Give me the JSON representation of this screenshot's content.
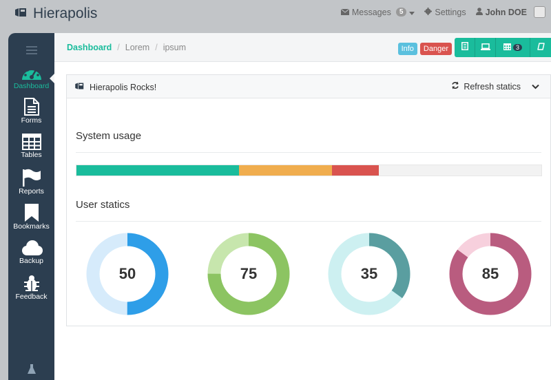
{
  "app": {
    "title": "Hierapolis"
  },
  "topnav": {
    "messages_label": "Messages",
    "messages_count": "5",
    "settings_label": "Settings",
    "user_name": "John DOE"
  },
  "sidebar": {
    "items": [
      {
        "label": "Dashboard",
        "icon": "dashboard-icon"
      },
      {
        "label": "Forms",
        "icon": "file-text-icon"
      },
      {
        "label": "Tables",
        "icon": "table-icon"
      },
      {
        "label": "Reports",
        "icon": "flag-icon"
      },
      {
        "label": "Bookmarks",
        "icon": "bookmark-icon"
      },
      {
        "label": "Backup",
        "icon": "cloud-icon"
      },
      {
        "label": "Feedback",
        "icon": "bug-icon"
      }
    ]
  },
  "breadcrumb": {
    "active": "Dashboard",
    "items": [
      "Lorem",
      "ipsum"
    ],
    "sep": "/"
  },
  "labels": {
    "info": "Info",
    "danger": "Danger"
  },
  "toolbar": {
    "calendar_count": "3"
  },
  "panel": {
    "title": "Hierapolis Rocks!",
    "refresh_label": "Refresh statics"
  },
  "system_usage": {
    "title": "System usage",
    "segments": [
      {
        "value": 35,
        "color": "#1abc9c"
      },
      {
        "value": 20,
        "color": "#f0ad4e"
      },
      {
        "value": 10,
        "color": "#d9534f"
      }
    ]
  },
  "user_statics": {
    "title": "User statics",
    "donuts": [
      {
        "value": "50",
        "percent": 50,
        "fg": "#2e9ee8",
        "bg": "#d6ebfb"
      },
      {
        "value": "75",
        "percent": 75,
        "fg": "#8cc462",
        "bg": "#c7e6ad"
      },
      {
        "value": "35",
        "percent": 35,
        "fg": "#5a9ea0",
        "bg": "#cdf0f1"
      },
      {
        "value": "85",
        "percent": 85,
        "fg": "#b95c7f",
        "bg": "#f7d0dd"
      }
    ]
  },
  "colors": {
    "accent": "#1abc9c",
    "sidebar": "#2c3e50",
    "info": "#5bc0de",
    "danger": "#d9534f"
  }
}
